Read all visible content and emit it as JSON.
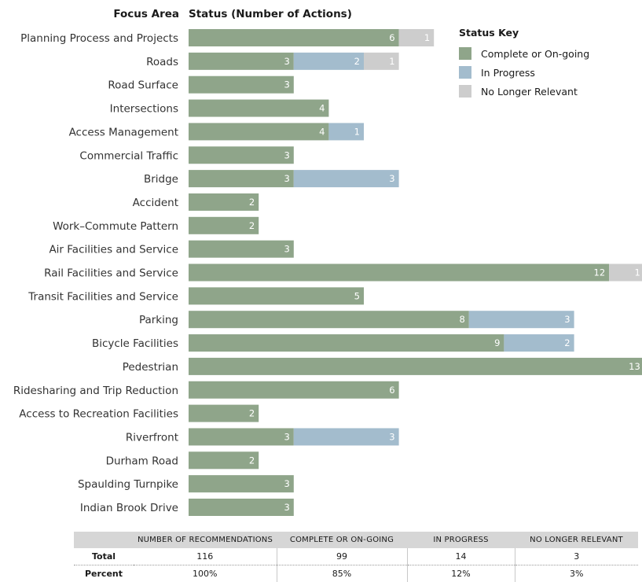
{
  "header": {
    "focus_area": "Focus Area",
    "status": "Status (Number of Actions)"
  },
  "legend": {
    "title": "Status Key",
    "items": [
      {
        "label": "Complete or On-going",
        "color": "#8fa58a"
      },
      {
        "label": "In Progress",
        "color": "#a3bccd"
      },
      {
        "label": "No Longer Relevant",
        "color": "#cdcdcd"
      }
    ]
  },
  "chart_data": {
    "type": "bar",
    "orientation": "horizontal",
    "stacked": true,
    "categories": [
      "Planning Process and Projects",
      "Roads",
      "Road Surface",
      "Intersections",
      "Access Management",
      "Commercial Traffic",
      "Bridge",
      "Accident",
      "Work–Commute Pattern",
      "Air Facilities and Service",
      "Rail Facilities and Service",
      "Transit Facilities and Service",
      "Parking",
      "Bicycle Facilities",
      "Pedestrian",
      "Ridesharing and Trip Reduction",
      "Access to Recreation Facilities",
      "Riverfront",
      "Durham Road",
      "Spaulding Turnpike",
      "Indian Brook Drive"
    ],
    "series": [
      {
        "name": "Complete or On-going",
        "color": "#8fa58a",
        "values": [
          6,
          3,
          3,
          4,
          4,
          3,
          3,
          2,
          2,
          3,
          12,
          5,
          8,
          9,
          13,
          6,
          2,
          3,
          2,
          3,
          3
        ]
      },
      {
        "name": "In Progress",
        "color": "#a3bccd",
        "values": [
          0,
          2,
          0,
          0,
          1,
          0,
          3,
          0,
          0,
          0,
          0,
          0,
          3,
          2,
          0,
          0,
          0,
          3,
          0,
          0,
          0
        ]
      },
      {
        "name": "No Longer Relevant",
        "color": "#cdcdcd",
        "values": [
          1,
          1,
          0,
          0,
          0,
          0,
          0,
          0,
          0,
          0,
          1,
          0,
          0,
          0,
          0,
          0,
          0,
          0,
          0,
          0,
          0
        ]
      }
    ],
    "xlim": [
      0,
      13
    ],
    "grid": false,
    "legend_position": "top-right"
  },
  "summary_table": {
    "headers": [
      "",
      "NUMBER OF RECOMMENDATIONS",
      "COMPLETE OR ON-GOING",
      "IN PROGRESS",
      "NO LONGER RELEVANT"
    ],
    "rows": [
      [
        "Total",
        "116",
        "99",
        "14",
        "3"
      ],
      [
        "Percent",
        "100%",
        "85%",
        "12%",
        "3%"
      ]
    ]
  }
}
